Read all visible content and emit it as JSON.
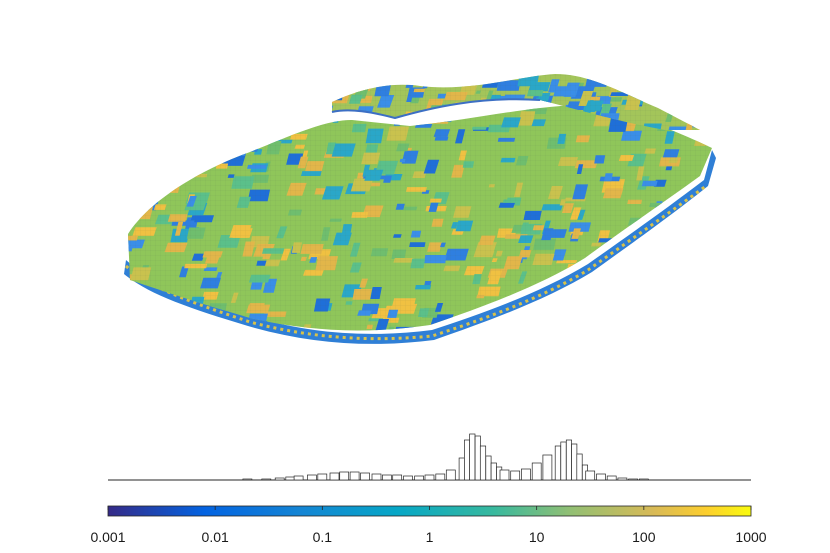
{
  "chart_data": [
    {
      "type": "surface",
      "title": "",
      "surface_shading": "faceted",
      "colormap": "parula",
      "color_scale": "log",
      "color_range": [
        0.001,
        1000
      ]
    },
    {
      "type": "bar",
      "title": "",
      "xlabel": "",
      "ylabel": "",
      "x_scale": "log",
      "xlim": [
        0.001,
        1000
      ],
      "bin_centers": [
        0.02,
        0.03,
        0.04,
        0.05,
        0.06,
        0.08,
        0.1,
        0.13,
        0.16,
        0.2,
        0.25,
        0.32,
        0.4,
        0.5,
        0.63,
        0.8,
        1.0,
        1.26,
        1.58,
        2.0,
        2.24,
        2.51,
        2.82,
        3.16,
        3.55,
        3.98,
        4.47,
        5.01,
        6.31,
        7.94,
        10.0,
        12.6,
        15.8,
        17.8,
        20.0,
        22.4,
        25.1,
        28.2,
        31.6,
        39.8,
        50.1,
        63.1,
        79.4,
        100
      ],
      "values": [
        1,
        1,
        2,
        3,
        4,
        5,
        6,
        7,
        8,
        8,
        7,
        6,
        5,
        5,
        4,
        4,
        5,
        6,
        10,
        22,
        40,
        46,
        44,
        34,
        24,
        17,
        13,
        10,
        9,
        11,
        17,
        25,
        34,
        38,
        40,
        36,
        26,
        15,
        9,
        6,
        4,
        2,
        1,
        1
      ]
    },
    {
      "type": "colorbar",
      "colormap": "parula",
      "scale": "log",
      "range": [
        0.001,
        1000
      ],
      "tick_labels": [
        "0.001",
        "0.01",
        "0.1",
        "1",
        "10",
        "100",
        "1000"
      ]
    }
  ]
}
